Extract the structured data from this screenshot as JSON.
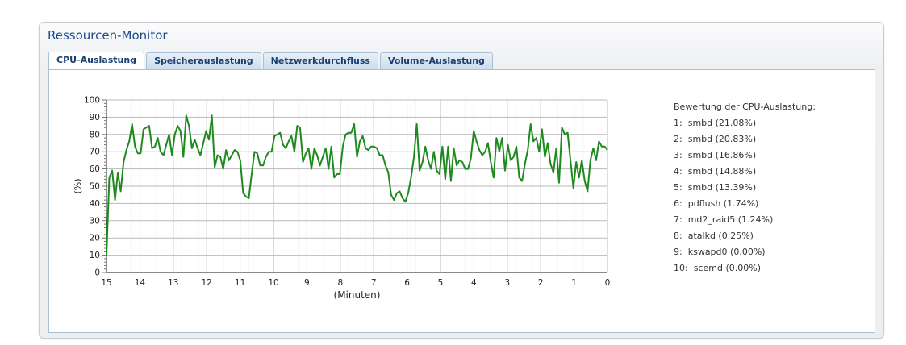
{
  "window": {
    "title": "Ressourcen-Monitor"
  },
  "tabs": [
    {
      "label": "CPU-Auslastung",
      "active": true
    },
    {
      "label": "Speicherauslastung",
      "active": false
    },
    {
      "label": "Netzwerkdurchfluss",
      "active": false
    },
    {
      "label": "Volume-Auslastung",
      "active": false
    }
  ],
  "ranking": {
    "title": "Bewertung der CPU-Auslastung:",
    "items": [
      {
        "rank": "1:",
        "name": "smbd",
        "percent": "(21.08%)"
      },
      {
        "rank": "2:",
        "name": "smbd",
        "percent": "(20.83%)"
      },
      {
        "rank": "3:",
        "name": "smbd",
        "percent": "(16.86%)"
      },
      {
        "rank": "4:",
        "name": "smbd",
        "percent": "(14.88%)"
      },
      {
        "rank": "5:",
        "name": "smbd",
        "percent": "(13.39%)"
      },
      {
        "rank": "6:",
        "name": "pdflush",
        "percent": "(1.74%)"
      },
      {
        "rank": "7:",
        "name": "md2_raid5",
        "percent": "(1.24%)"
      },
      {
        "rank": "8:",
        "name": "atalkd",
        "percent": "(0.25%)"
      },
      {
        "rank": "9:",
        "name": "kswapd0",
        "percent": "(0.00%)"
      },
      {
        "rank": "10:",
        "name": "scemd",
        "percent": "(0.00%)"
      }
    ]
  },
  "colors": {
    "line": "#1e8a1e",
    "grid": "#b9b9b9",
    "title": "#1c4a8a",
    "tab_border": "#a9bfd6"
  },
  "chart_data": {
    "type": "line",
    "xlabel": "(Minuten)",
    "ylabel": "(%)",
    "xlim": [
      15,
      0
    ],
    "ylim": [
      0,
      100
    ],
    "x_ticks": [
      15,
      14,
      13,
      12,
      11,
      10,
      9,
      8,
      7,
      6,
      5,
      4,
      3,
      2,
      1,
      0
    ],
    "y_ticks": [
      0,
      10,
      20,
      30,
      40,
      50,
      60,
      70,
      80,
      90,
      100
    ],
    "grid": true,
    "x_direction": "descending",
    "series": [
      {
        "values": [
          10,
          55,
          59,
          42,
          58,
          47,
          64,
          71,
          76,
          86,
          73,
          69,
          69,
          83,
          84,
          85,
          72,
          73,
          78,
          70,
          68,
          74,
          80,
          68,
          80,
          85,
          82,
          67,
          91,
          85,
          72,
          77,
          72,
          68,
          75,
          82,
          77,
          91,
          61,
          68,
          67,
          60,
          71,
          65,
          68,
          71,
          70,
          65,
          46,
          44,
          43,
          57,
          70,
          69,
          62,
          62,
          67,
          70,
          70,
          79,
          80,
          81,
          74,
          72,
          76,
          79,
          70,
          85,
          84,
          64,
          69,
          72,
          60,
          72,
          68,
          62,
          67,
          72,
          60,
          73,
          55,
          57,
          57,
          73,
          80,
          81,
          81,
          86,
          67,
          76,
          79,
          72,
          71,
          73,
          73,
          72,
          68,
          68,
          62,
          58,
          45,
          42,
          46,
          47,
          43,
          41,
          46,
          55,
          67,
          86,
          59,
          64,
          73,
          65,
          60,
          70,
          59,
          57,
          73,
          54,
          73,
          53,
          72,
          62,
          65,
          64,
          60,
          60,
          66,
          82,
          76,
          71,
          68,
          70,
          75,
          64,
          55,
          78,
          70,
          78,
          59,
          74,
          65,
          67,
          73,
          55,
          53,
          63,
          71,
          86,
          76,
          78,
          70,
          83,
          67,
          75,
          63,
          58,
          72,
          52,
          84,
          80,
          81,
          65,
          49,
          64,
          55,
          65,
          53,
          47,
          65,
          72,
          65,
          76,
          73,
          73,
          71
        ]
      }
    ]
  }
}
